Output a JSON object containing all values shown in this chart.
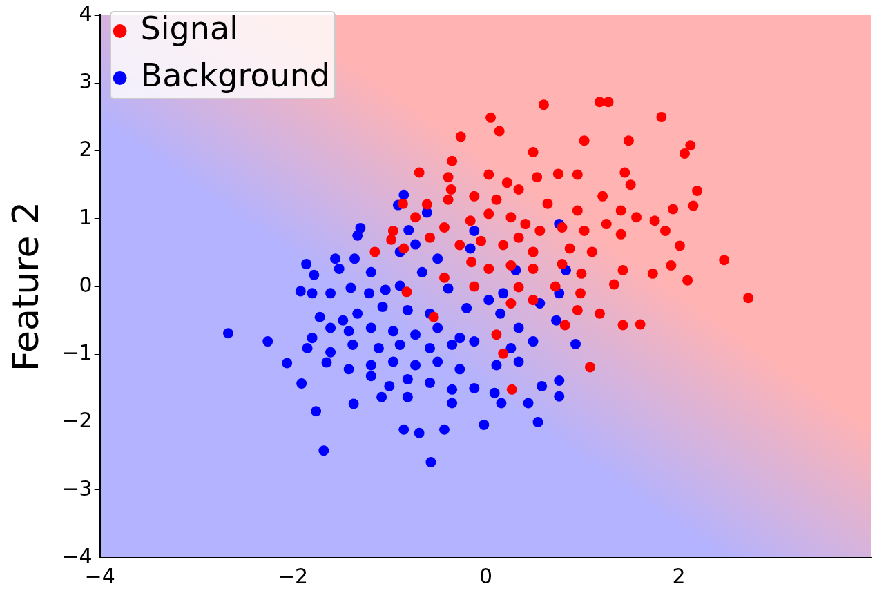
{
  "chart_data": {
    "type": "scatter",
    "ylabel": "Feature 2",
    "xlim": [
      -4,
      4
    ],
    "xticks": [
      -4,
      -2,
      0,
      2
    ],
    "ylim": [
      -4,
      4
    ],
    "yticks": [
      -4,
      -3,
      -2,
      -1,
      0,
      1,
      2,
      3,
      4
    ],
    "grid": false,
    "legend": "top left",
    "marker": "circle",
    "series": [
      {
        "name": "Signal",
        "color": "#ff0000",
        "x": [
          0.6,
          1.18,
          1.27,
          1.82,
          0.05,
          0.14,
          -0.26,
          2.12,
          2.06,
          1.02,
          1.48,
          -0.35,
          0.49,
          -0.69,
          -0.39,
          0.03,
          0.22,
          0.53,
          0.75,
          0.95,
          1.44,
          1.5,
          2.19,
          -0.86,
          -0.61,
          -0.39,
          -0.12,
          0.11,
          0.34,
          0.64,
          0.95,
          1.21,
          1.4,
          1.94,
          2.15,
          -0.73,
          -0.43,
          -0.16,
          0.03,
          0.26,
          0.41,
          0.56,
          0.79,
          1.02,
          1.25,
          1.56,
          1.75,
          -0.96,
          -0.85,
          -0.58,
          -0.27,
          -0.05,
          0.18,
          0.34,
          0.49,
          0.87,
          1.1,
          1.4,
          1.86,
          2.01,
          -1.15,
          -0.98,
          -0.15,
          0.03,
          0.26,
          0.49,
          0.79,
          0.99,
          1.42,
          1.73,
          1.92,
          2.09,
          2.47,
          -0.43,
          -0.12,
          0.34,
          0.72,
          0.98,
          1.33,
          2.72,
          -0.82,
          0.26,
          0.49,
          0.95,
          1.18,
          1.42,
          1.6,
          0.82,
          -0.54,
          0.11,
          1.08,
          0.27,
          0.18,
          -0.36
        ],
        "values": [
          2.68,
          2.72,
          2.72,
          2.5,
          2.49,
          2.29,
          2.21,
          2.08,
          1.96,
          2.15,
          2.15,
          1.85,
          1.98,
          1.68,
          1.61,
          1.65,
          1.53,
          1.61,
          1.66,
          1.65,
          1.68,
          1.5,
          1.41,
          1.22,
          1.21,
          1.28,
          1.33,
          1.28,
          1.43,
          1.22,
          1.12,
          1.33,
          1.12,
          1.14,
          1.19,
          1.02,
          0.87,
          0.97,
          1.07,
          1.02,
          0.92,
          0.82,
          0.87,
          0.82,
          0.92,
          1.02,
          0.97,
          0.82,
          0.56,
          0.72,
          0.61,
          0.67,
          0.61,
          0.72,
          0.51,
          0.56,
          0.51,
          0.77,
          0.82,
          0.6,
          0.51,
          0.69,
          0.36,
          0.26,
          0.31,
          0.26,
          0.33,
          0.19,
          0.24,
          0.19,
          0.31,
          0.09,
          0.39,
          0.13,
          0.0,
          -0.01,
          0.0,
          -0.1,
          0.03,
          -0.17,
          -0.08,
          -0.25,
          -0.2,
          -0.35,
          -0.4,
          -0.57,
          -0.56,
          -0.57,
          -0.45,
          -0.71,
          -1.19,
          -1.52,
          -0.99,
          1.43
        ]
      },
      {
        "name": "Background",
        "color": "#0000ff",
        "x": [
          -0.85,
          -0.91,
          -0.61,
          -1.3,
          -1.33,
          -0.8,
          -0.12,
          0.76,
          -1.56,
          -1.36,
          -1.19,
          -0.89,
          -0.73,
          -0.5,
          -0.16,
          0.31,
          0.83,
          -1.86,
          -1.52,
          -1.78,
          -1.92,
          -1.8,
          -1.61,
          -1.4,
          -1.21,
          -1.04,
          -0.89,
          -0.66,
          -0.39,
          0.03,
          0.18,
          0.56,
          0.76,
          -1.72,
          -1.48,
          -1.33,
          -1.07,
          -0.81,
          -0.58,
          -0.2,
          0.15,
          0.73,
          -2.67,
          -2.26,
          -1.8,
          -1.61,
          -1.42,
          -1.19,
          -0.96,
          -0.73,
          -0.5,
          -0.27,
          0.34,
          -1.85,
          -1.61,
          -1.38,
          -1.11,
          -0.89,
          -0.58,
          -0.35,
          -0.12,
          0.26,
          0.49,
          0.93,
          -2.06,
          -1.65,
          -1.42,
          -1.19,
          -0.96,
          -0.73,
          -0.5,
          -0.27,
          0.11,
          0.34,
          -1.91,
          -1.19,
          -1.0,
          -0.81,
          -0.58,
          -0.35,
          -0.12,
          0.09,
          -1.08,
          -0.81,
          -0.35,
          0.16,
          0.44,
          0.76,
          0.76,
          0.58,
          -1.76,
          -1.37,
          0.54,
          -0.85,
          -0.43,
          -0.69,
          -0.02,
          -1.68,
          -0.57
        ],
        "values": [
          1.35,
          1.2,
          1.09,
          0.86,
          0.75,
          0.83,
          0.82,
          0.92,
          0.41,
          0.41,
          0.21,
          0.51,
          0.62,
          0.41,
          0.56,
          0.24,
          0.24,
          0.33,
          0.26,
          0.17,
          -0.07,
          -0.1,
          -0.1,
          -0.02,
          -0.1,
          -0.05,
          0.01,
          0.21,
          -0.03,
          -0.2,
          -0.1,
          -0.25,
          -0.1,
          -0.45,
          -0.5,
          -0.4,
          -0.3,
          -0.35,
          -0.4,
          -0.32,
          -0.4,
          -0.5,
          -0.69,
          -0.81,
          -0.76,
          -0.61,
          -0.66,
          -0.61,
          -0.66,
          -0.71,
          -0.61,
          -0.76,
          -0.61,
          -0.91,
          -0.97,
          -0.86,
          -0.91,
          -0.86,
          -0.91,
          -0.86,
          -0.81,
          -0.91,
          -0.81,
          -0.85,
          -1.13,
          -1.12,
          -1.22,
          -1.16,
          -1.11,
          -1.16,
          -1.11,
          -1.22,
          -1.16,
          -1.11,
          -1.43,
          -1.32,
          -1.47,
          -1.37,
          -1.42,
          -1.52,
          -1.5,
          -1.57,
          -1.63,
          -1.63,
          -1.72,
          -1.72,
          -1.72,
          -1.62,
          -1.39,
          -1.47,
          -1.84,
          -1.73,
          -2.0,
          -2.11,
          -2.11,
          -2.16,
          -2.04,
          -2.42,
          -2.59
        ]
      }
    ]
  }
}
